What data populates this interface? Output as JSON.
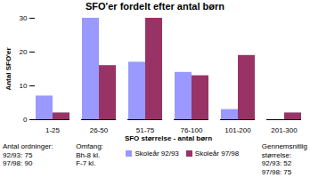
{
  "chart_data": {
    "type": "bar",
    "title": "SFO'er fordelt efter antal børn",
    "xlabel": "SFO størrelse - antal børn",
    "ylabel": "Antal SFO'er",
    "categories": [
      "1-25",
      "26-50",
      "51-75",
      "76-100",
      "101-200",
      "201-300"
    ],
    "series": [
      {
        "name": "Skoleår 92/93",
        "color": "#9999ff",
        "values": [
          7,
          30,
          17,
          14,
          3,
          0
        ]
      },
      {
        "name": "Skoleår 97/98",
        "color": "#993366",
        "values": [
          2,
          16,
          30,
          13,
          19,
          2
        ]
      }
    ],
    "ylim": [
      0,
      30
    ],
    "yticks": [
      0,
      10,
      20,
      30
    ],
    "grid": false,
    "legend": "bottom",
    "annotations": [
      [
        "Antal ordninger:",
        "92/93: 75",
        "97/98: 90"
      ],
      [
        "Omfang:",
        "Bh-8 kl.",
        "F-7 kl."
      ],
      [
        "Gennemsnitlig",
        "størrelse:",
        "92/93: 52",
        "97/98: 75"
      ]
    ]
  }
}
